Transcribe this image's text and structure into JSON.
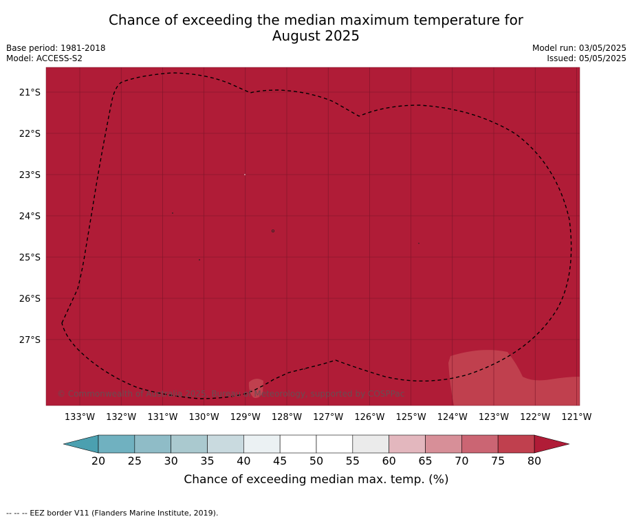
{
  "title_line1": "Chance of exceeding the median maximum temperature for",
  "title_line2": "August 2025",
  "info_left": {
    "base_period": "Base period: 1981-2018",
    "model": "Model: ACCESS-S2"
  },
  "info_right": {
    "model_run": "Model run: 03/05/2025",
    "issued": "Issued: 05/05/2025"
  },
  "map": {
    "lon_labels": [
      "133°W",
      "132°W",
      "131°W",
      "130°W",
      "129°W",
      "128°W",
      "127°W",
      "126°W",
      "125°W",
      "124°W",
      "123°W",
      "122°W",
      "121°W"
    ],
    "lat_labels": [
      "21°S",
      "22°S",
      "23°S",
      "24°S",
      "25°S",
      "26°S",
      "27°S"
    ],
    "background_color": "#b01c37",
    "lighter_region_color": "#c0404e",
    "copyright": "© Commonwealth of Australia 2025, Bureau of Meteorology, supported by COSPPac"
  },
  "colorbar": {
    "ticks": [
      "20",
      "25",
      "30",
      "35",
      "40",
      "45",
      "50",
      "55",
      "60",
      "65",
      "70",
      "75",
      "80"
    ],
    "colors": [
      "#70b1c0",
      "#8fbcc7",
      "#aac9cf",
      "#c9dadf",
      "#ebf1f3",
      "#ffffff",
      "#ffffff",
      "#ebebeb",
      "#e3b7be",
      "#d78f98",
      "#cb6573",
      "#c0404e"
    ],
    "low_extend_color": "#4ba0b0",
    "high_extend_color": "#b01c37",
    "label": "Chance of exceeding median max. temp. (%)"
  },
  "footnote": {
    "legend_dash": "-- -- --",
    "text": "EEZ border V11 (Flanders Marine Institute, 2019)."
  }
}
